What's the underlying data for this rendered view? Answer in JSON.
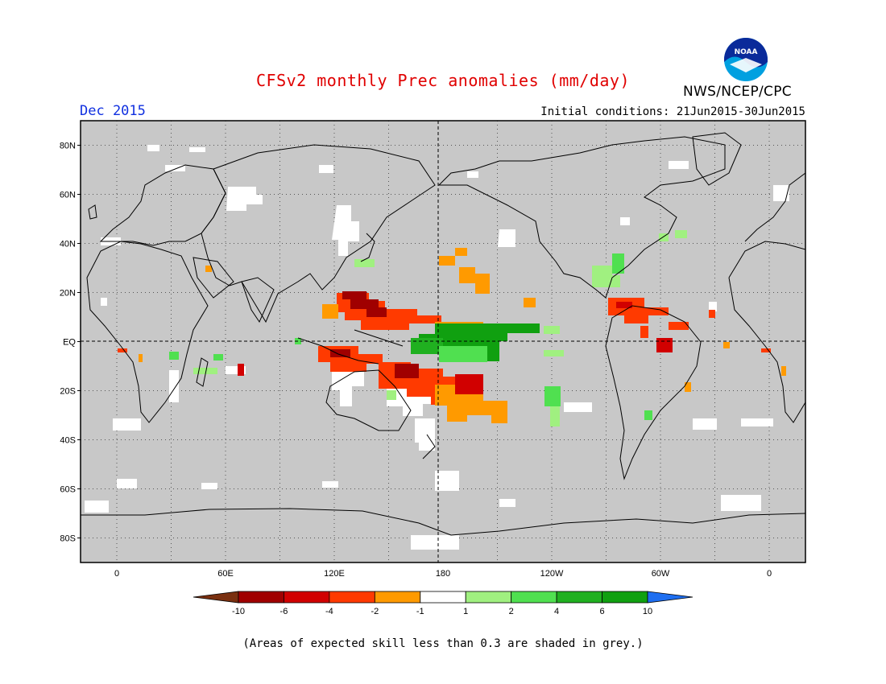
{
  "header": {
    "title": "CFSv2 monthly Prec anomalies (mm/day)",
    "period": "Dec 2015",
    "initial_conditions": "Initial conditions: 21Jun2015-30Jun2015",
    "agency": "NWS/NCEP/CPC",
    "logo_text": "NOAA"
  },
  "map": {
    "projection": "equirectangular",
    "lon_range": [
      -20,
      380
    ],
    "lat_range": [
      -90,
      90
    ],
    "grid": "dotted",
    "background_color": "#c8c8c8",
    "lat_labels": [
      "80N",
      "60N",
      "40N",
      "20N",
      "EQ",
      "20S",
      "40S",
      "60S",
      "80S"
    ],
    "lon_labels": [
      "0",
      "60E",
      "120E",
      "180",
      "120W",
      "60W",
      "0"
    ]
  },
  "legend": {
    "bins": [
      {
        "color": "#7a3010"
      },
      {
        "color": "#a00000"
      },
      {
        "color": "#d10000"
      },
      {
        "color": "#ff3a00"
      },
      {
        "color": "#ff9a00"
      },
      {
        "color": "#ffffff"
      },
      {
        "color": "#a0f080"
      },
      {
        "color": "#50e050"
      },
      {
        "color": "#20b020"
      },
      {
        "color": "#10a010"
      },
      {
        "color": "#1e6ef0"
      }
    ],
    "labels": [
      "-10",
      "-6",
      "-4",
      "-2",
      "-1",
      "1",
      "2",
      "4",
      "6",
      "10"
    ]
  },
  "footnote": "(Areas of expected skill less than 0.3 are shaded in grey.)"
}
